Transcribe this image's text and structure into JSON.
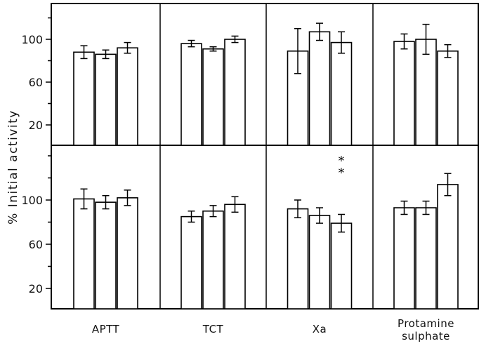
{
  "chart_data": {
    "type": "bar",
    "ylabel": "% Initial activity",
    "categories": [
      "APTT",
      "TCT",
      "Xa",
      "Protamine sulphate"
    ],
    "category_labels": [
      [
        "APTT"
      ],
      [
        "TCT"
      ],
      [
        "Xa"
      ],
      [
        "Protamine",
        "sulphate"
      ]
    ],
    "yticks": [
      20,
      60,
      100
    ],
    "ylim": [
      0,
      140
    ],
    "grid": false,
    "panels": [
      {
        "position": "top",
        "groups": [
          {
            "category": "APTT",
            "bars": [
              {
                "value": 88,
                "err": 6
              },
              {
                "value": 86,
                "err": 4
              },
              {
                "value": 92,
                "err": 5
              }
            ]
          },
          {
            "category": "TCT",
            "bars": [
              {
                "value": 96,
                "err": 3
              },
              {
                "value": 91,
                "err": 2
              },
              {
                "value": 100,
                "err": 3
              }
            ]
          },
          {
            "category": "Xa",
            "bars": [
              {
                "value": 89,
                "err": 21
              },
              {
                "value": 107,
                "err": 8
              },
              {
                "value": 97,
                "err": 10
              }
            ]
          },
          {
            "category": "Protamine sulphate",
            "bars": [
              {
                "value": 98,
                "err": 7
              },
              {
                "value": 100,
                "err": 14
              },
              {
                "value": 89,
                "err": 6
              }
            ]
          }
        ]
      },
      {
        "position": "bottom",
        "groups": [
          {
            "category": "APTT",
            "bars": [
              {
                "value": 101,
                "err": 9
              },
              {
                "value": 98,
                "err": 6
              },
              {
                "value": 102,
                "err": 7
              }
            ]
          },
          {
            "category": "TCT",
            "bars": [
              {
                "value": 85,
                "err": 5
              },
              {
                "value": 90,
                "err": 5
              },
              {
                "value": 96,
                "err": 7
              }
            ]
          },
          {
            "category": "Xa",
            "bars": [
              {
                "value": 92,
                "err": 8
              },
              {
                "value": 86,
                "err": 7
              },
              {
                "value": 79,
                "err": 8
              }
            ]
          },
          {
            "category": "Protamine sulphate",
            "bars": [
              {
                "value": 93,
                "err": 6
              },
              {
                "value": 93,
                "err": 6
              },
              {
                "value": 114,
                "err": 10
              }
            ]
          }
        ]
      }
    ],
    "annotations": [
      {
        "text": "*",
        "panel": "bottom",
        "category": "Xa",
        "bar_index": 2
      },
      {
        "text": "*",
        "panel": "bottom",
        "category": "Xa",
        "bar_index": 2
      }
    ]
  }
}
